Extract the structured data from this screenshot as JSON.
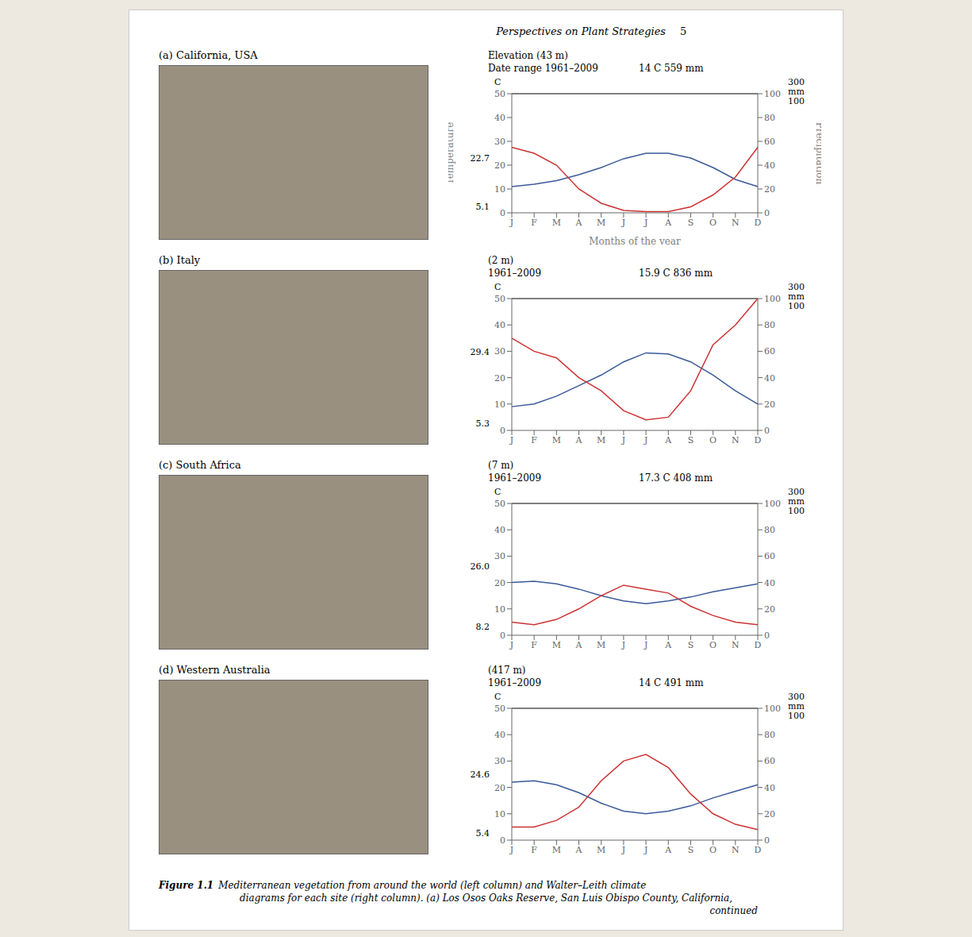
{
  "annotations": [
    "Perspectives on Plant Strategies",
    "5",
    "Figure 1.1",
    "Mediterranean vegetation from around the world (left column) and Walter–Leith climate",
    "diagrams for each site (right column). (a) Los Osos Oaks Reserve, San Luis Obispo County, California,",
    "continued"
  ],
  "chart_data": [
    {
      "type": "line",
      "title": "(a) California, USA",
      "annotations": [
        "Elevation (43 m)",
        "Date range 1961–2009",
        "14 C 559 mm",
        "22.7",
        "5.1",
        "C",
        "300",
        "mm",
        "100"
      ],
      "x_label": "Months of the year",
      "y_label": "Temperature",
      "y2_label": "Precipitation",
      "categories": [
        "J",
        "F",
        "M",
        "A",
        "M",
        "J",
        "J",
        "A",
        "S",
        "O",
        "N",
        "D"
      ],
      "series": [
        {
          "name": "Temperature",
          "color": "#3a5a9a",
          "values": [
            11.0,
            12.0,
            13.5,
            16.0,
            19.0,
            22.7,
            25.0,
            25.0,
            23.0,
            19.0,
            14.0,
            11.0
          ]
        },
        {
          "name": "Precipitation",
          "color": "#cc3333",
          "axis": "y2",
          "values": [
            55,
            50,
            40,
            20,
            8,
            2,
            1,
            1,
            5,
            15,
            30,
            55
          ]
        }
      ],
      "ylim": [
        0,
        50
      ],
      "yticks": [
        0,
        10,
        20,
        30,
        40,
        50
      ],
      "y2lim": [
        0,
        100
      ],
      "y2ticks": [
        0,
        20,
        40,
        60,
        80,
        100
      ]
    },
    {
      "type": "line",
      "title": "(b) Italy",
      "annotations": [
        "(2 m)",
        "1961–2009",
        "15.9 C 836 mm",
        "29.4",
        "5.3",
        "C",
        "300",
        "mm",
        "100"
      ],
      "categories": [
        "J",
        "F",
        "M",
        "A",
        "M",
        "J",
        "J",
        "A",
        "S",
        "O",
        "N",
        "D"
      ],
      "series": [
        {
          "name": "Temperature",
          "color": "#3a5a9a",
          "values": [
            9.0,
            10.0,
            13.0,
            17.0,
            21.0,
            26.0,
            29.4,
            29.0,
            26.0,
            21.0,
            15.0,
            10.0
          ]
        },
        {
          "name": "Precipitation",
          "color": "#cc3333",
          "axis": "y2",
          "values": [
            70,
            60,
            55,
            40,
            30,
            15,
            8,
            10,
            30,
            65,
            80,
            100
          ]
        }
      ],
      "ylim": [
        0,
        50
      ],
      "yticks": [
        0,
        10,
        20,
        30,
        40,
        50
      ],
      "y2lim": [
        0,
        100
      ],
      "y2ticks": [
        0,
        20,
        40,
        60,
        80,
        100
      ]
    },
    {
      "type": "line",
      "title": "(c) South Africa",
      "annotations": [
        "(7 m)",
        "1961–2009",
        "17.3 C 408 mm",
        "26.0",
        "8.2",
        "C",
        "300",
        "mm",
        "100"
      ],
      "categories": [
        "J",
        "F",
        "M",
        "A",
        "M",
        "J",
        "J",
        "A",
        "S",
        "O",
        "N",
        "D"
      ],
      "series": [
        {
          "name": "Temperature",
          "color": "#3a5a9a",
          "values": [
            20.0,
            20.5,
            19.5,
            17.5,
            15.0,
            13.0,
            12.0,
            13.0,
            14.5,
            16.5,
            18.0,
            19.5
          ]
        },
        {
          "name": "Precipitation",
          "color": "#cc3333",
          "axis": "y2",
          "values": [
            10,
            8,
            12,
            20,
            30,
            38,
            35,
            32,
            22,
            15,
            10,
            8
          ]
        }
      ],
      "ylim": [
        0,
        50
      ],
      "yticks": [
        0,
        10,
        20,
        30,
        40,
        50
      ],
      "y2lim": [
        0,
        100
      ],
      "y2ticks": [
        0,
        20,
        40,
        60,
        80,
        100
      ]
    },
    {
      "type": "line",
      "title": "(d) Western Australia",
      "annotations": [
        "(417 m)",
        "1961–2009",
        "14 C 491 mm",
        "24.6",
        "5.4",
        "C",
        "300",
        "mm",
        "100"
      ],
      "categories": [
        "J",
        "F",
        "M",
        "A",
        "M",
        "J",
        "J",
        "A",
        "S",
        "O",
        "N",
        "D"
      ],
      "series": [
        {
          "name": "Temperature",
          "color": "#3a5a9a",
          "values": [
            22.0,
            22.5,
            21.0,
            18.0,
            14.0,
            11.0,
            10.0,
            11.0,
            13.0,
            16.0,
            18.5,
            21.0
          ]
        },
        {
          "name": "Precipitation",
          "color": "#cc3333",
          "axis": "y2",
          "values": [
            10,
            10,
            15,
            25,
            45,
            60,
            65,
            55,
            35,
            20,
            12,
            8
          ]
        }
      ],
      "ylim": [
        0,
        50
      ],
      "yticks": [
        0,
        10,
        20,
        30,
        40,
        50
      ],
      "y2lim": [
        0,
        100
      ],
      "y2ticks": [
        0,
        20,
        40,
        60,
        80,
        100
      ]
    }
  ]
}
